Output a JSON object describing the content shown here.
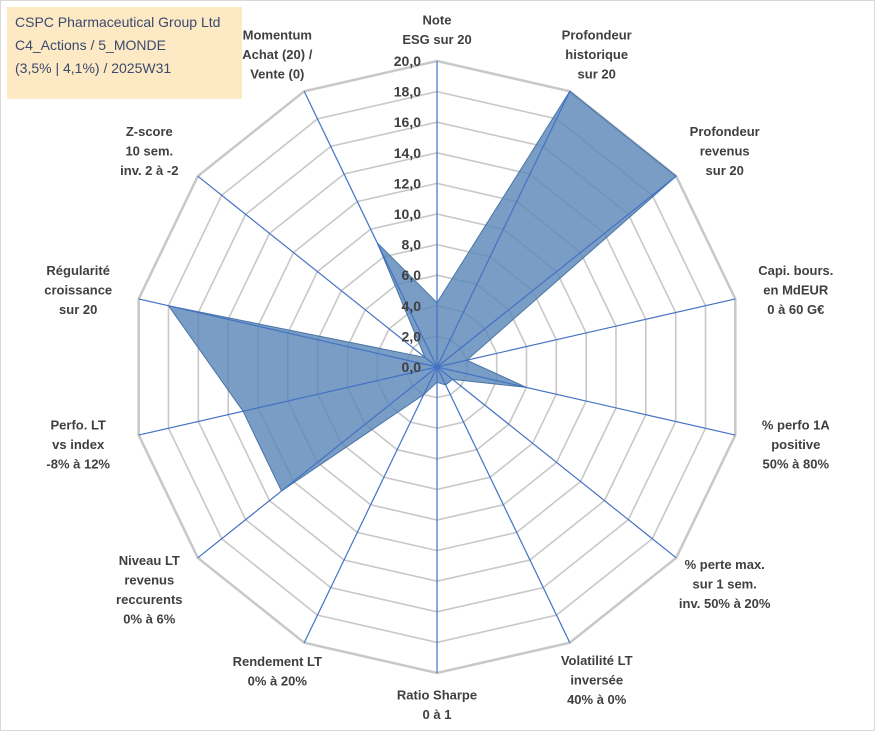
{
  "title": {
    "line1": "CSPC Pharmaceutical Group Ltd",
    "line2": "C4_Actions / 5_MONDE",
    "line3": "(3,5% | 4,1%) / 2025W31"
  },
  "colors": {
    "fill": "#5b87b8",
    "axis": "#4472c4",
    "grid": "#c8c8c8",
    "titleBox": "#fde9c4"
  },
  "chart_data": {
    "type": "radar",
    "ylim": [
      0,
      20
    ],
    "tick_step": 2,
    "tick_labels": [
      "0,0",
      "2,0",
      "4,0",
      "6,0",
      "8,0",
      "10,0",
      "12,0",
      "14,0",
      "16,0",
      "18,0",
      "20,0"
    ],
    "grid": true,
    "axes": [
      {
        "label": [
          "Note",
          "ESG sur 20"
        ],
        "value": 4.2
      },
      {
        "label": [
          "Profondeur",
          "historique",
          "sur 20"
        ],
        "value": 20
      },
      {
        "label": [
          "Profondeur",
          "revenus",
          "sur 20"
        ],
        "value": 20
      },
      {
        "label": [
          "Capi. bours.",
          "en MdEUR",
          "0 à 60 G€"
        ],
        "value": 2.0
      },
      {
        "label": [
          "% perfo 1A",
          "positive",
          "50% à 80%"
        ],
        "value": 6.0
      },
      {
        "label": [
          "% perte max.",
          "sur 1 sem.",
          "inv. 50% à 20%"
        ],
        "value": 1.3
      },
      {
        "label": [
          "Volatilité LT",
          "inversée",
          "40% à 0%"
        ],
        "value": 1.3
      },
      {
        "label": [
          "Ratio Sharpe",
          "0 à 1"
        ],
        "value": 1.0
      },
      {
        "label": [
          "Rendement LT",
          "0% à 20%"
        ],
        "value": 2.0
      },
      {
        "label": [
          "Niveau LT",
          "revenus",
          "reccurents",
          "0% à 6%"
        ],
        "value": 13.0
      },
      {
        "label": [
          "Perfo. LT",
          "vs index",
          "-8% à 12%"
        ],
        "value": 13.0
      },
      {
        "label": [
          "Régularité",
          "croissance",
          "sur 20"
        ],
        "value": 18.0
      },
      {
        "label": [
          "Z-score",
          "10 sem.",
          "inv. 2 à -2"
        ],
        "value": 1.0
      },
      {
        "label": [
          "Momentum",
          "Achat (20) /",
          "Vente (0)"
        ],
        "value": 9.0
      }
    ]
  }
}
